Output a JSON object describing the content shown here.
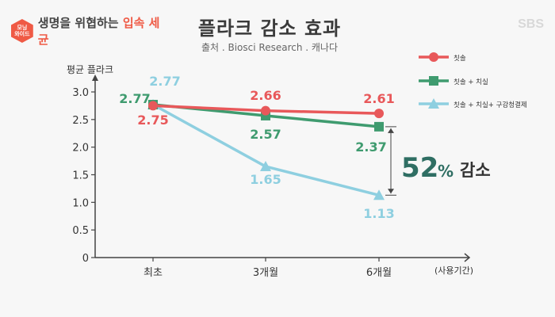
{
  "banner": {
    "badge_line1": "모닝",
    "badge_line2": "와이드",
    "title_main": "생명을 위협하는 ",
    "title_accent": "입속 세균"
  },
  "watermark": "SBS",
  "chart_data": {
    "type": "line",
    "title": "플라크 감소 효과",
    "subtitle": "출처 . Biosci Research . 캐나다",
    "ylabel": "평균 플라크",
    "xlabel": "(사용기간)",
    "categories": [
      "최초",
      "3개월",
      "6개월"
    ],
    "y_ticks": [
      "0",
      "0.5",
      "1.0",
      "1.5",
      "2.0",
      "2.5",
      "3.0"
    ],
    "ylim": [
      0,
      3.0
    ],
    "grid": false,
    "legend_position": "top-right",
    "series": [
      {
        "name": "칫솔",
        "values": [
          2.75,
          2.66,
          2.61
        ],
        "labels": [
          "2.75",
          "2.66",
          "2.61"
        ],
        "color": "#e8585a",
        "marker": "circle"
      },
      {
        "name": "칫솔 + 치실",
        "values": [
          2.77,
          2.57,
          2.37
        ],
        "labels": [
          "2.77",
          "2.57",
          "2.37"
        ],
        "color": "#3f9b6f",
        "marker": "square"
      },
      {
        "name": "칫솔 + 치실+ 구강청결제",
        "values": [
          2.77,
          1.65,
          1.13
        ],
        "labels": [
          "2.77",
          "1.65",
          "1.13"
        ],
        "color": "#8ecfe0",
        "marker": "triangle"
      }
    ],
    "annotation": {
      "value": "52",
      "unit": "%",
      "text": "감소"
    }
  }
}
